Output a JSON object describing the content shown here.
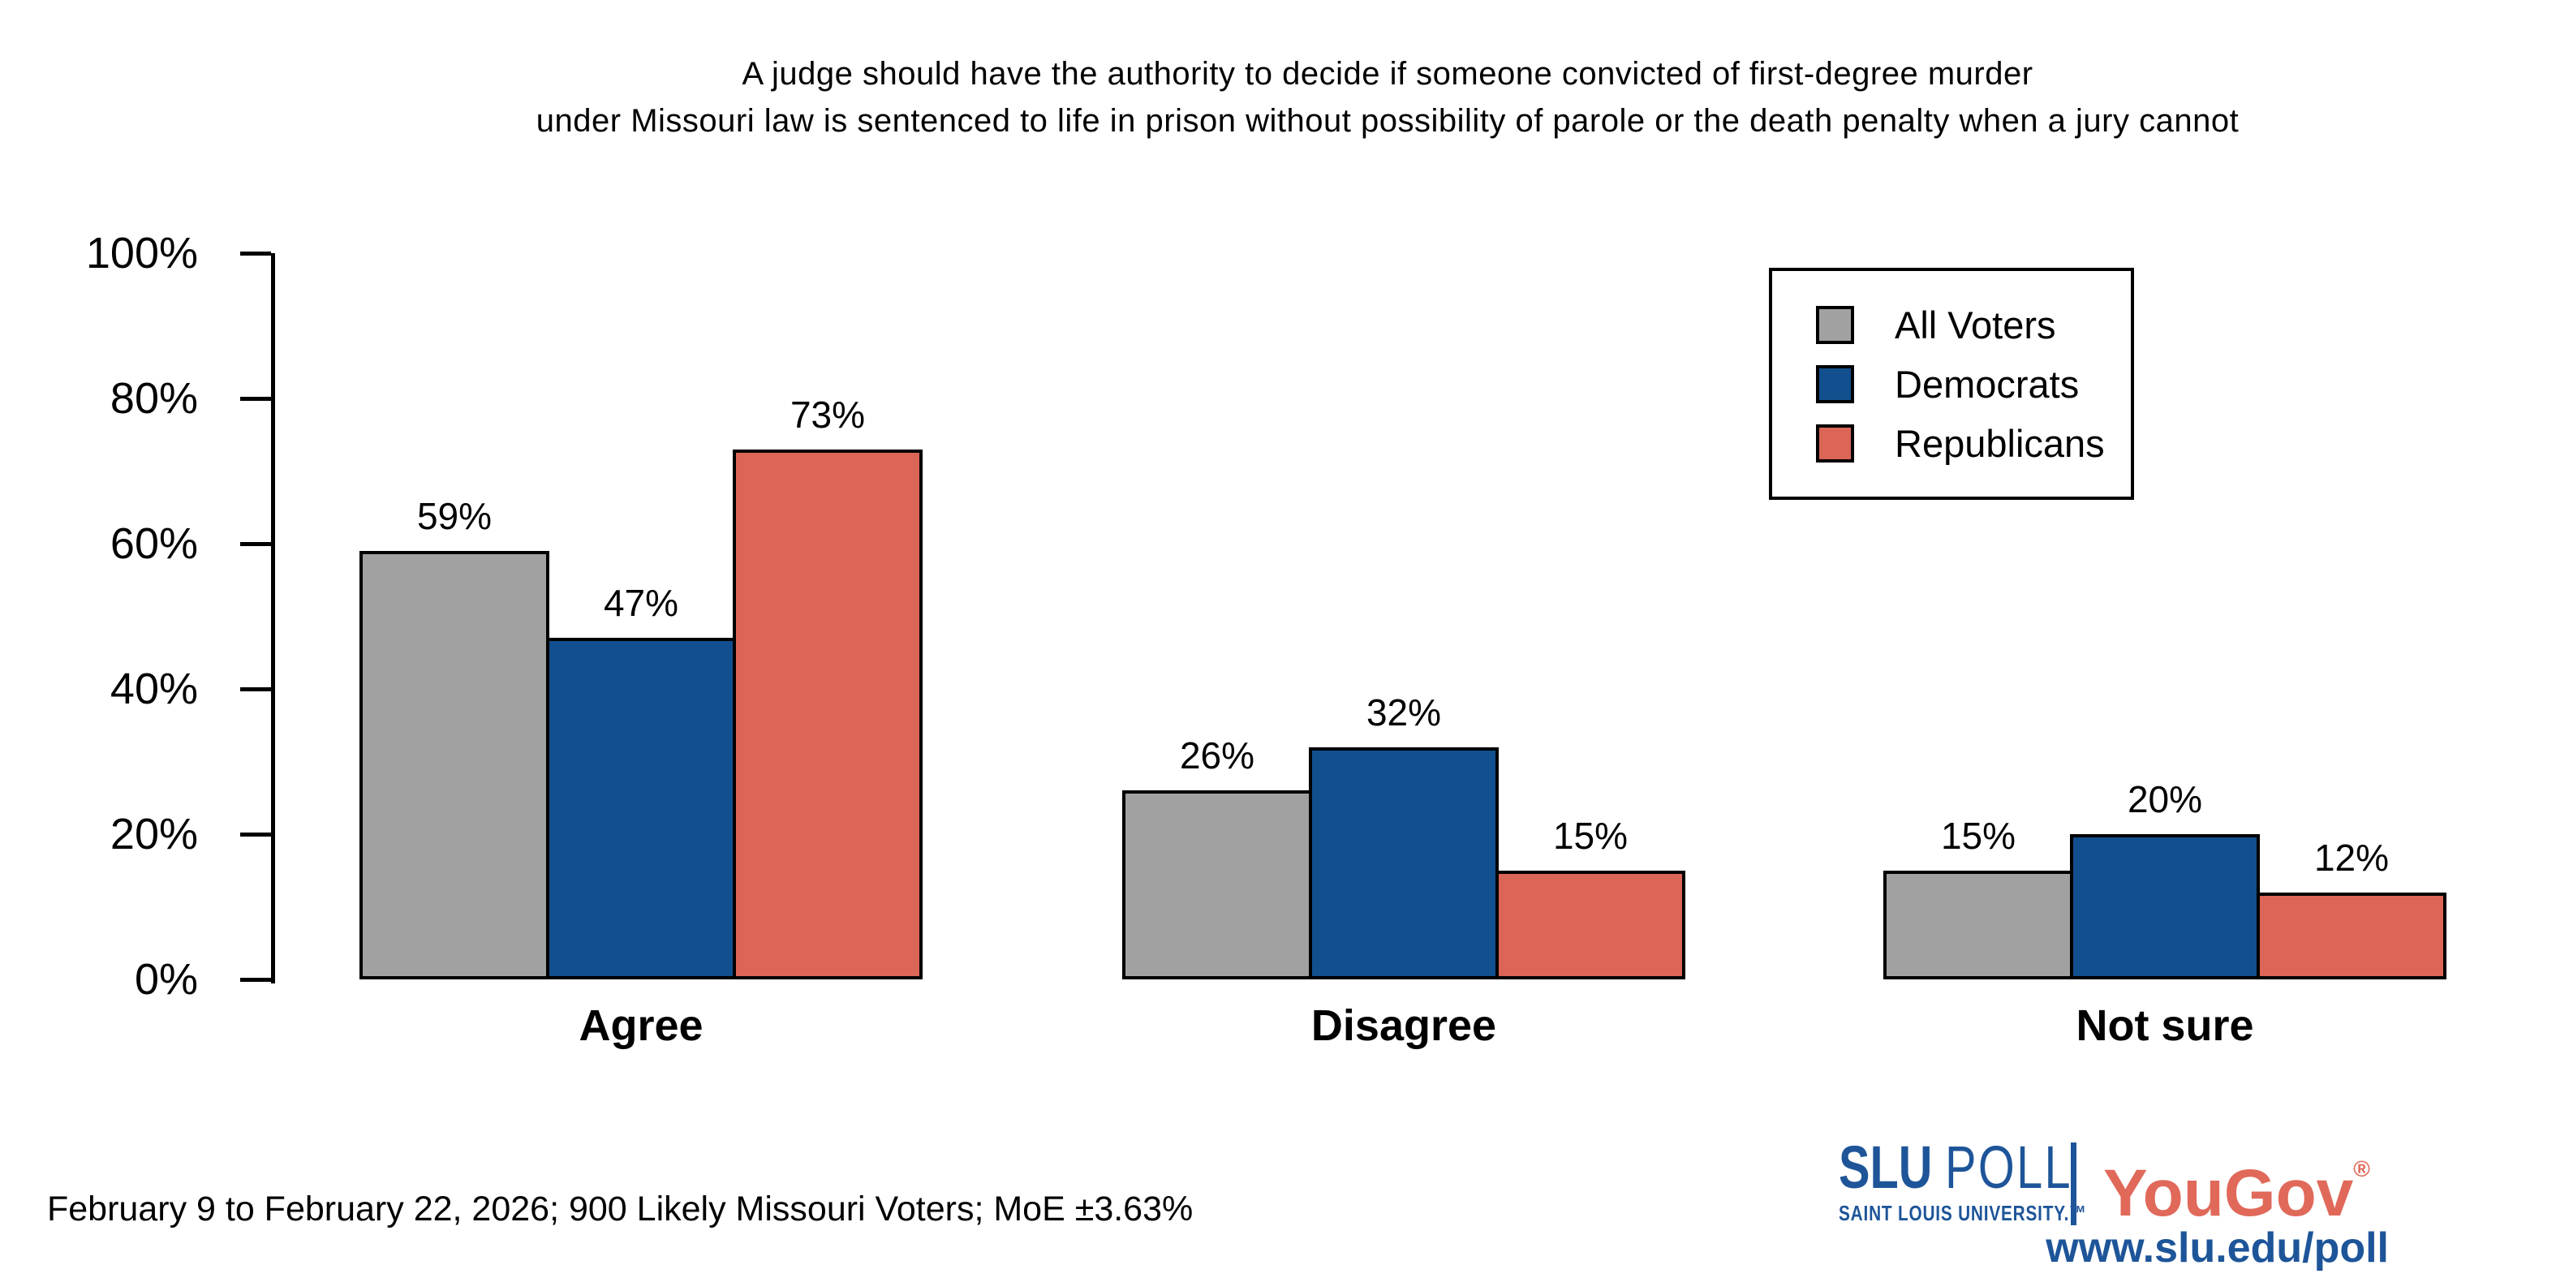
{
  "title": {
    "line1": "A judge should have the authority to decide if someone convicted of first-degree murder",
    "line2": "under Missouri law is sentenced to life in prison without possibility of parole or the death penalty when a jury cannot"
  },
  "chart_data": {
    "type": "bar",
    "categories": [
      "Agree",
      "Disagree",
      "Not sure"
    ],
    "series": [
      {
        "name": "All Voters",
        "color": "#A1A1A1",
        "values": [
          59,
          26,
          15
        ]
      },
      {
        "name": "Democrats",
        "color": "#114F8E",
        "values": [
          47,
          32,
          20
        ]
      },
      {
        "name": "Republicans",
        "color": "#DB6557",
        "values": [
          73,
          15,
          12
        ]
      }
    ],
    "value_suffix": "%",
    "ylim": [
      0,
      100
    ],
    "yticks": [
      {
        "value": 0,
        "label": "0%"
      },
      {
        "value": 20,
        "label": "20%"
      },
      {
        "value": 40,
        "label": "40%"
      },
      {
        "value": 60,
        "label": "60%"
      },
      {
        "value": 80,
        "label": "80%"
      },
      {
        "value": 100,
        "label": "100%"
      }
    ],
    "grid": false,
    "legend_position": "top-right",
    "bar_border_color": "#000000"
  },
  "footer": {
    "note": "February 9 to February 22, 2026; 900 Likely Missouri Voters; MoE ±3.63%"
  },
  "branding": {
    "slu_bold": "SLU",
    "slu_light": "POLL",
    "slu_subtitle": "SAINT LOUIS UNIVERSITY.™",
    "partner_name": "YouGov",
    "partner_mark": "®",
    "website": "www.slu.edu/poll",
    "slu_blue": "#1E5599",
    "partner_red": "#E0695A"
  }
}
